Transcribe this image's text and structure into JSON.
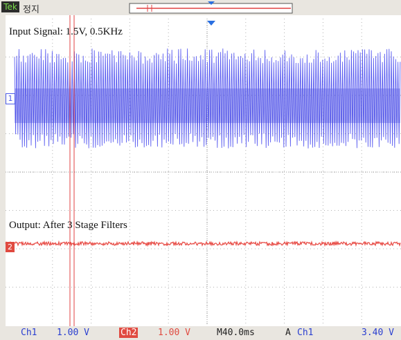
{
  "header": {
    "brand": "Tek",
    "status": "정지"
  },
  "annotations": {
    "input": "Input Signal: 1.5V, 0.5KHz",
    "output": "Output: After 3 Stage Filters"
  },
  "markers": {
    "ch1": "1",
    "ch2": "2"
  },
  "footer": {
    "ch1_label": "Ch1",
    "ch1_scale": "1.00 V",
    "ch2_label": "Ch2",
    "ch2_scale": "1.00 V",
    "timebase": "M40.0ms",
    "trigger_mode": "A",
    "trigger_source": "Ch1",
    "trigger_level": "3.40 V"
  }
}
